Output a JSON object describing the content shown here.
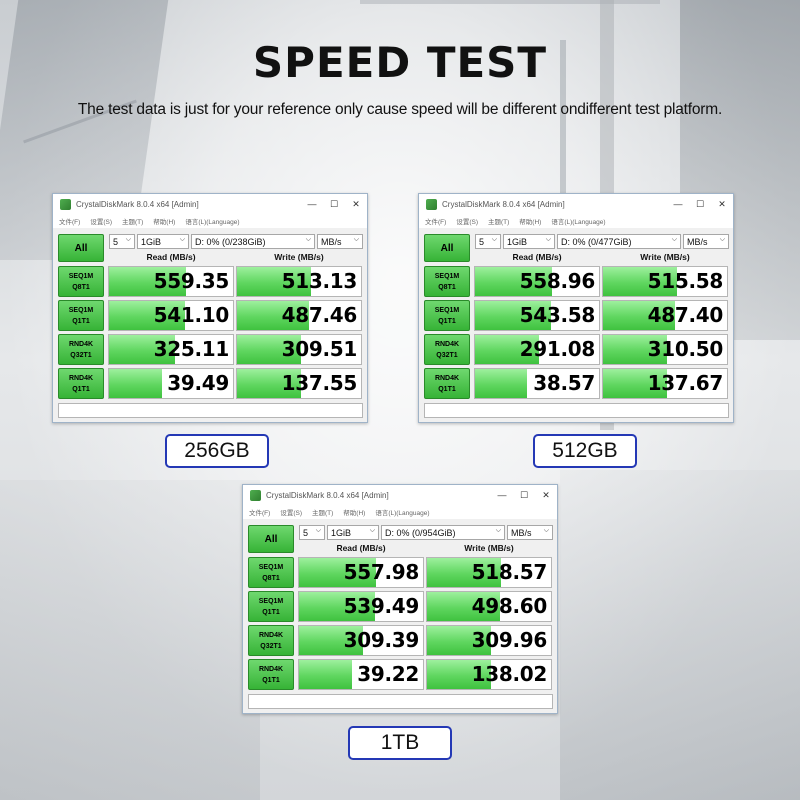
{
  "header": {
    "title": "SPEED TEST",
    "subtitle": "The test data is just for your reference only cause speed will be different ondifferent test platform."
  },
  "colors": {
    "accent_green": "#36b336",
    "fill_green": "#5fd65f",
    "label_border": "#2438b5"
  },
  "icons": [
    "app-icon",
    "minimize-icon",
    "maximize-icon",
    "close-icon",
    "chevron-down-icon"
  ],
  "window_common": {
    "title": "CrystalDiskMark 8.0.4 x64 [Admin]",
    "controls": {
      "minimize": "—",
      "maximize": "☐",
      "close": "✕"
    },
    "menu": [
      "文件(F)",
      "设置(S)",
      "主题(T)",
      "帮助(H)",
      "语言(L)(Language)"
    ],
    "all_button": "All",
    "count": "5",
    "size": "1GiB",
    "unit": "MB/s",
    "read_header": "Read (MB/s)",
    "write_header": "Write (MB/s)",
    "rows": [
      {
        "line1": "SEQ1M",
        "line2": "Q8T1"
      },
      {
        "line1": "SEQ1M",
        "line2": "Q1T1"
      },
      {
        "line1": "RND4K",
        "line2": "Q32T1"
      },
      {
        "line1": "RND4K",
        "line2": "Q1T1"
      }
    ]
  },
  "windows": [
    {
      "drive": "D: 0% (0/238GiB)",
      "capacity_label": "256GB",
      "results": [
        {
          "read": "559.35",
          "write": "513.13",
          "read_fill": 0.62,
          "write_fill": 0.6
        },
        {
          "read": "541.10",
          "write": "487.46",
          "read_fill": 0.61,
          "write_fill": 0.58
        },
        {
          "read": "325.11",
          "write": "309.51",
          "read_fill": 0.53,
          "write_fill": 0.52
        },
        {
          "read": "39.49",
          "write": "137.55",
          "read_fill": 0.43,
          "write_fill": 0.52
        }
      ]
    },
    {
      "drive": "D: 0% (0/477GiB)",
      "capacity_label": "512GB",
      "results": [
        {
          "read": "558.96",
          "write": "515.58",
          "read_fill": 0.62,
          "write_fill": 0.6
        },
        {
          "read": "543.58",
          "write": "487.40",
          "read_fill": 0.61,
          "write_fill": 0.58
        },
        {
          "read": "291.08",
          "write": "310.50",
          "read_fill": 0.52,
          "write_fill": 0.52
        },
        {
          "read": "38.57",
          "write": "137.67",
          "read_fill": 0.42,
          "write_fill": 0.52
        }
      ]
    },
    {
      "drive": "D: 0% (0/954GiB)",
      "capacity_label": "1TB",
      "results": [
        {
          "read": "557.98",
          "write": "518.57",
          "read_fill": 0.62,
          "write_fill": 0.6
        },
        {
          "read": "539.49",
          "write": "498.60",
          "read_fill": 0.61,
          "write_fill": 0.59
        },
        {
          "read": "309.39",
          "write": "309.96",
          "read_fill": 0.52,
          "write_fill": 0.52
        },
        {
          "read": "39.22",
          "write": "138.02",
          "read_fill": 0.43,
          "write_fill": 0.52
        }
      ]
    }
  ]
}
